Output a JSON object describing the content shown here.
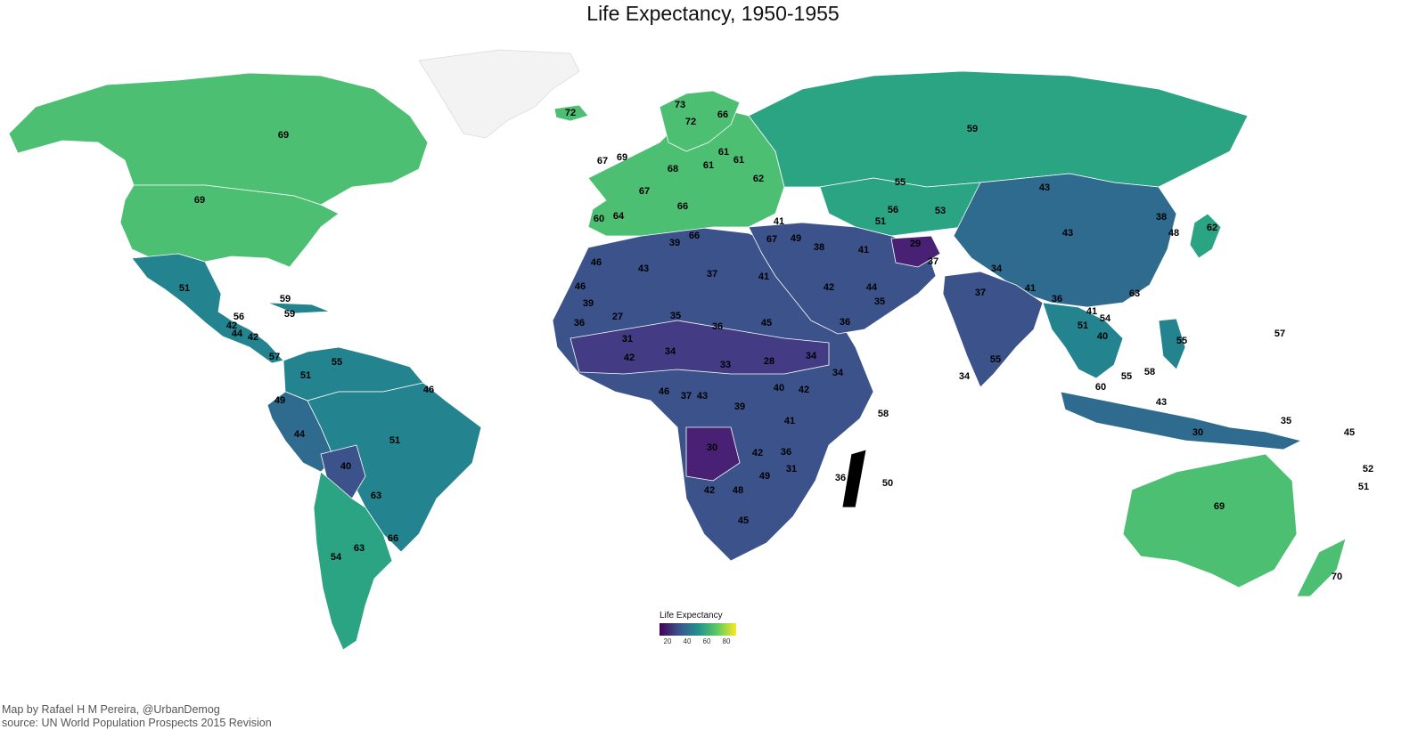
{
  "title": "Life Expectancy,  1950-1955",
  "legend": {
    "title": "Life Expectancy",
    "ticks": [
      "20",
      "40",
      "60",
      "80"
    ],
    "gradient": [
      "#440154",
      "#3b528b",
      "#21908c",
      "#5dc963",
      "#fde725"
    ]
  },
  "caption": {
    "line1": "Map by Rafael H M Pereira, @UrbanDemog",
    "line2": "source: UN World Population Prospects 2015 Revision"
  },
  "colors": {
    "high": "#4cbf73",
    "mid_high": "#2aa483",
    "mid": "#23838e",
    "mid_low": "#2e6b8e",
    "low": "#3b528b",
    "lower": "#433b83",
    "lowest": "#482175",
    "greenland": "#f3f3f3"
  },
  "values": {
    "canada": "69",
    "usa": "69",
    "mexico": "51",
    "iceland": "72",
    "brazil": "51",
    "argentina": "63",
    "chile": "54",
    "bolivia": "40",
    "peru": "44",
    "colombia": "51",
    "venezuela": "55",
    "ecuador": "49",
    "paraguay": "63",
    "uruguay": "66",
    "guiana": "46",
    "russia": "59",
    "kazakhstan": "55",
    "china": "43",
    "mongolia": "43",
    "india": "37",
    "afghanistan": "29",
    "iran": "41",
    "turkey": "41",
    "saudi": "42",
    "pakistan": "37",
    "japan": "62",
    "indonesia": "43",
    "australia": "69",
    "nz": "70",
    "png": "35",
    "philippines": "55",
    "algeria": "43",
    "libya": "37",
    "egypt": "41",
    "sudan": "45",
    "mali": "27",
    "niger": "35",
    "chad": "36",
    "ethiopia": "34",
    "drc": "39",
    "angola": "30",
    "southafrica": "45",
    "namibia": "42",
    "botswana": "48",
    "madagascar": "36",
    "kenya": "41",
    "tanzania": "42",
    "somalia": "34",
    "nigeria": "34",
    "mozambique": "31",
    "morocco": "46",
    "scandinavia": "72",
    "finland": "66",
    "uk": "69",
    "ireland": "67",
    "france": "67",
    "spain": "60",
    "portugal": "64",
    "germany": "68",
    "italy": "66",
    "poland": "61",
    "ukraine": "62",
    "greece": "66",
    "srilanka": "55",
    "thailand": "51",
    "vietnam": "40",
    "myanmar": "36",
    "malaysia": "60",
    "korea": "48",
    "northkorea": "38",
    "yemen": "36",
    "mauritius": "50",
    "reunion": "58",
    "seychelles": "34",
    "fiji": "45",
    "newcaledonia": "51",
    "samoa": "52",
    "pacific": "57",
    "nepal": "34",
    "bangladesh": "41",
    "cambodia": "41",
    "laos": "54",
    "guam": "30",
    "cuba": "59",
    "jamaica": "59",
    "guatemala": "42",
    "honduras": "44",
    "nicaragua": "42",
    "costarica": "56",
    "panama": "57",
    "uzbekistan": "56",
    "turkmenistan": "51",
    "kyrgyz": "53",
    "iraq": "38",
    "syria": "67",
    "jordan": "49",
    "oman": "35",
    "uae": "44",
    "hk": "63",
    "taiwan": "58",
    "singapore": "55",
    "zambia": "42",
    "zimbabwe": "49",
    "malawi": "36",
    "cameroon": "37",
    "gabon": "43",
    "car": "33",
    "southsudan": "28",
    "uganda": "40",
    "senegal": "36",
    "mauritania": "46",
    "guinea": "39",
    "ghana": "42",
    "burkina": "31",
    "equatorialguinea": "46",
    "westsahara": "39",
    "norway": "73",
    "belarus": "61",
    "baltic": "61"
  }
}
